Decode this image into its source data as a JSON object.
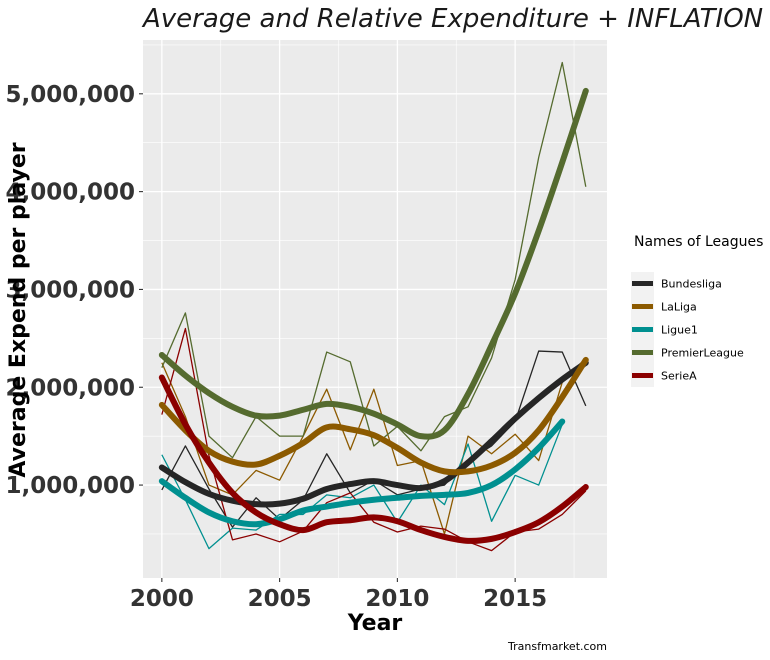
{
  "chart_data": {
    "type": "line",
    "title": "Average and Relative  Expenditure + INFLATION",
    "xlabel": "Year",
    "ylabel": "Average Expend  per player",
    "caption": "Transfmarket.com",
    "xlim": [
      1999.2,
      2018.9
    ],
    "ylim": [
      50000,
      5550000
    ],
    "x_ticks": [
      2000,
      2005,
      2010,
      2015
    ],
    "x_tick_labels": [
      "2000",
      "2005",
      "2010",
      "2015"
    ],
    "y_ticks": [
      1000000,
      2000000,
      3000000,
      4000000,
      5000000
    ],
    "y_tick_labels": [
      "1,000,000",
      "2,000,000",
      "3,000,000",
      "4,000,000",
      "5,000,000"
    ],
    "grid": true,
    "legend_title": "Names of Leagues",
    "legend_position": "right",
    "series": [
      {
        "name": "Bundesliga",
        "color": "#262626",
        "raw": {
          "x": [
            2000,
            2001,
            2002,
            2003,
            2004,
            2005,
            2006,
            2007,
            2008,
            2009,
            2010,
            2011,
            2012,
            2013,
            2014,
            2015,
            2016,
            2017,
            2018
          ],
          "y": [
            950000,
            1400000,
            960000,
            570000,
            870000,
            650000,
            850000,
            1320000,
            920000,
            1050000,
            900000,
            960000,
            1000000,
            1250000,
            1400000,
            1650000,
            2370000,
            2360000,
            1810000
          ]
        },
        "smooth": {
          "x": [
            2000,
            2001,
            2002,
            2003,
            2004,
            2005,
            2006,
            2007,
            2008,
            2009,
            2010,
            2011,
            2012,
            2013,
            2014,
            2015,
            2016,
            2017,
            2018
          ],
          "y": [
            1180000,
            1030000,
            910000,
            840000,
            805000,
            810000,
            860000,
            960000,
            1010000,
            1040000,
            1000000,
            970000,
            1040000,
            1230000,
            1450000,
            1680000,
            1890000,
            2080000,
            2250000
          ]
        }
      },
      {
        "name": "LaLiga",
        "color": "#8c5a00",
        "raw": {
          "x": [
            2000,
            2001,
            2002,
            2003,
            2004,
            2005,
            2006,
            2007,
            2008,
            2009,
            2010,
            2011,
            2012,
            2013,
            2014,
            2015,
            2016,
            2017,
            2018
          ],
          "y": [
            2250000,
            1700000,
            1000000,
            900000,
            1150000,
            1050000,
            1500000,
            1980000,
            1360000,
            1980000,
            1200000,
            1250000,
            500000,
            1500000,
            1320000,
            1520000,
            1250000,
            2050000,
            2300000
          ]
        },
        "smooth": {
          "x": [
            2000,
            2001,
            2002,
            2003,
            2004,
            2005,
            2006,
            2007,
            2008,
            2009,
            2010,
            2011,
            2012,
            2013,
            2014,
            2015,
            2016,
            2017,
            2018
          ],
          "y": [
            1820000,
            1560000,
            1350000,
            1240000,
            1210000,
            1300000,
            1430000,
            1590000,
            1570000,
            1510000,
            1380000,
            1230000,
            1140000,
            1140000,
            1200000,
            1330000,
            1560000,
            1900000,
            2280000
          ]
        }
      },
      {
        "name": "Ligue1",
        "color": "#009090",
        "raw": {
          "x": [
            2000,
            2001,
            2002,
            2003,
            2004,
            2005,
            2006,
            2007,
            2008,
            2009,
            2010,
            2011,
            2012,
            2013,
            2014,
            2015,
            2016,
            2017
          ],
          "y": [
            1310000,
            850000,
            350000,
            560000,
            540000,
            700000,
            700000,
            900000,
            870000,
            1000000,
            620000,
            1000000,
            800000,
            1420000,
            630000,
            1100000,
            1000000,
            1620000
          ]
        },
        "smooth": {
          "x": [
            2000,
            2001,
            2002,
            2003,
            2004,
            2005,
            2006,
            2007,
            2008,
            2009,
            2010,
            2011,
            2012,
            2013,
            2014,
            2015,
            2016,
            2017
          ],
          "y": [
            1040000,
            870000,
            720000,
            630000,
            600000,
            650000,
            740000,
            780000,
            820000,
            850000,
            870000,
            890000,
            900000,
            920000,
            1000000,
            1160000,
            1380000,
            1650000
          ]
        }
      },
      {
        "name": "PremierLeague",
        "color": "#556b2f",
        "raw": {
          "x": [
            2000,
            2001,
            2002,
            2003,
            2004,
            2005,
            2006,
            2007,
            2008,
            2009,
            2010,
            2011,
            2012,
            2013,
            2014,
            2015,
            2016,
            2017,
            2018
          ],
          "y": [
            2200000,
            2760000,
            1500000,
            1280000,
            1700000,
            1500000,
            1500000,
            2360000,
            2260000,
            1400000,
            1600000,
            1350000,
            1700000,
            1800000,
            2300000,
            3100000,
            4350000,
            5320000,
            4050000
          ]
        },
        "smooth": {
          "x": [
            2000,
            2001,
            2002,
            2003,
            2004,
            2005,
            2006,
            2007,
            2008,
            2009,
            2010,
            2011,
            2012,
            2013,
            2014,
            2015,
            2016,
            2017,
            2018
          ],
          "y": [
            2330000,
            2120000,
            1940000,
            1800000,
            1710000,
            1710000,
            1770000,
            1830000,
            1800000,
            1730000,
            1620000,
            1500000,
            1560000,
            1930000,
            2430000,
            2960000,
            3600000,
            4300000,
            5030000
          ]
        }
      },
      {
        "name": "SerieA",
        "color": "#8b0000",
        "raw": {
          "x": [
            2000,
            2001,
            2002,
            2003,
            2004,
            2005,
            2006,
            2007,
            2008,
            2009,
            2010,
            2011,
            2012,
            2013,
            2014,
            2015,
            2016,
            2017,
            2018
          ],
          "y": [
            1720000,
            2600000,
            1300000,
            440000,
            500000,
            420000,
            530000,
            820000,
            920000,
            620000,
            520000,
            580000,
            550000,
            420000,
            330000,
            520000,
            550000,
            700000,
            940000
          ]
        },
        "smooth": {
          "x": [
            2000,
            2001,
            2002,
            2003,
            2004,
            2005,
            2006,
            2007,
            2008,
            2009,
            2010,
            2011,
            2012,
            2013,
            2014,
            2015,
            2016,
            2017,
            2018
          ],
          "y": [
            2100000,
            1620000,
            1230000,
            920000,
            720000,
            600000,
            540000,
            620000,
            640000,
            670000,
            630000,
            540000,
            470000,
            430000,
            450000,
            520000,
            620000,
            780000,
            980000
          ]
        }
      }
    ]
  }
}
